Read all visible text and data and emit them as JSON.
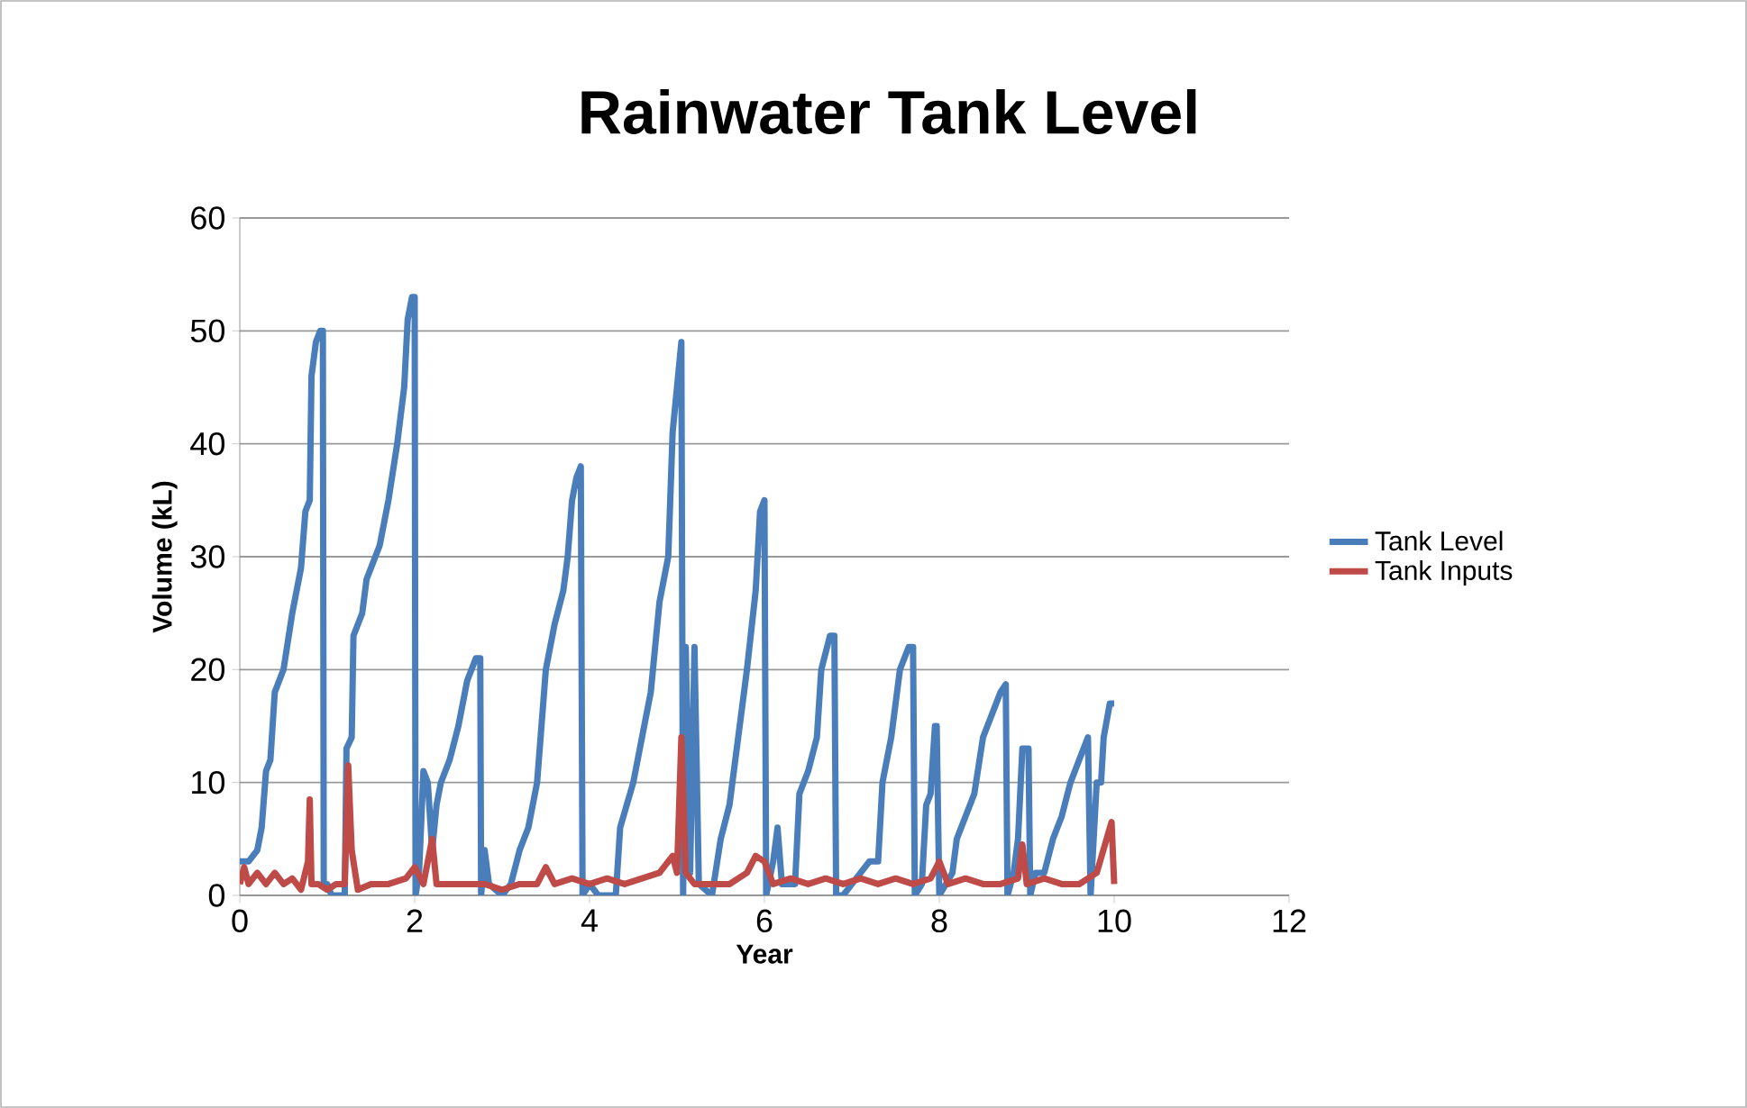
{
  "chart_data": {
    "type": "line",
    "title": "Rainwater Tank Level",
    "xlabel": "Year",
    "ylabel": "Volume (kL)",
    "xlim": [
      0,
      12
    ],
    "xticks": [
      0,
      2,
      4,
      6,
      8,
      10,
      12
    ],
    "ylim": [
      0,
      60
    ],
    "yticks": [
      0,
      10,
      20,
      30,
      40,
      50,
      60
    ],
    "grid": "y",
    "legend": "right",
    "marker": "none",
    "line_style": "solid",
    "series": [
      {
        "name": "Tank Level",
        "color": "#4a7ebb",
        "x": [
          0,
          0.1,
          0.2,
          0.25,
          0.3,
          0.35,
          0.4,
          0.5,
          0.6,
          0.7,
          0.75,
          0.8,
          0.82,
          0.87,
          0.92,
          0.95,
          0.96,
          1.0,
          1.05,
          1.2,
          1.22,
          1.28,
          1.3,
          1.4,
          1.45,
          1.6,
          1.7,
          1.8,
          1.88,
          1.92,
          1.97,
          2.0,
          2.01,
          2.05,
          2.1,
          2.15,
          2.2,
          2.25,
          2.3,
          2.4,
          2.5,
          2.6,
          2.7,
          2.75,
          2.76,
          2.8,
          2.85,
          3.0,
          3.1,
          3.2,
          3.3,
          3.4,
          3.5,
          3.6,
          3.7,
          3.75,
          3.8,
          3.85,
          3.9,
          3.92,
          4.0,
          4.1,
          4.3,
          4.35,
          4.5,
          4.6,
          4.7,
          4.8,
          4.9,
          4.95,
          5.0,
          5.05,
          5.07,
          5.1,
          5.15,
          5.2,
          5.25,
          5.4,
          5.5,
          5.6,
          5.7,
          5.8,
          5.9,
          5.95,
          6.0,
          6.02,
          6.1,
          6.15,
          6.2,
          6.35,
          6.4,
          6.5,
          6.6,
          6.65,
          6.75,
          6.8,
          6.82,
          6.9,
          7.0,
          7.2,
          7.3,
          7.35,
          7.45,
          7.55,
          7.65,
          7.7,
          7.72,
          7.8,
          7.85,
          7.9,
          7.95,
          7.97,
          8.0,
          8.15,
          8.2,
          8.3,
          8.4,
          8.5,
          8.6,
          8.7,
          8.76,
          8.78,
          8.85,
          8.9,
          8.95,
          8.98,
          9.02,
          9.04,
          9.1,
          9.2,
          9.3,
          9.4,
          9.5,
          9.6,
          9.7,
          9.73,
          9.8,
          9.85,
          9.88,
          9.95,
          10.0
        ],
        "values": [
          3,
          3,
          4,
          6,
          11,
          12,
          18,
          20,
          25,
          29,
          34,
          35,
          46,
          49,
          50,
          50,
          1,
          1,
          0,
          0,
          13,
          14,
          23,
          25,
          28,
          31,
          35,
          40,
          45,
          51,
          53,
          53,
          0,
          2,
          11,
          10,
          4,
          8,
          10,
          12,
          15,
          19,
          21,
          21,
          0,
          4,
          1,
          0,
          1,
          4,
          6,
          10,
          20,
          24,
          27,
          30,
          35,
          37,
          38,
          0,
          1,
          0,
          0,
          6,
          10,
          14,
          18,
          26,
          30,
          41,
          45,
          49,
          0,
          22,
          2,
          22,
          1,
          0,
          5,
          8,
          14,
          20,
          27,
          34,
          35,
          0,
          3,
          6,
          1,
          1,
          9,
          11,
          14,
          20,
          23,
          23,
          0,
          0,
          1,
          3,
          3,
          10,
          14,
          20,
          22,
          22,
          0,
          1,
          8,
          9,
          15,
          15,
          0,
          2,
          5,
          7,
          9,
          14,
          16,
          18,
          18.7,
          0,
          2,
          5,
          13,
          13,
          13,
          0,
          2,
          2,
          5,
          7,
          10,
          12,
          14,
          0,
          10,
          10,
          14,
          17,
          17
        ]
      },
      {
        "name": "Tank Inputs",
        "color": "#be4b48",
        "x": [
          0,
          0.05,
          0.1,
          0.2,
          0.3,
          0.4,
          0.5,
          0.6,
          0.7,
          0.78,
          0.8,
          0.82,
          0.9,
          1.0,
          1.1,
          1.2,
          1.24,
          1.28,
          1.35,
          1.5,
          1.7,
          1.9,
          2.0,
          2.1,
          2.2,
          2.25,
          2.4,
          2.6,
          2.8,
          3.0,
          3.2,
          3.4,
          3.5,
          3.6,
          3.8,
          4.0,
          4.2,
          4.4,
          4.6,
          4.8,
          4.95,
          5.0,
          5.05,
          5.1,
          5.2,
          5.4,
          5.6,
          5.8,
          5.9,
          6.0,
          6.1,
          6.3,
          6.5,
          6.7,
          6.9,
          7.1,
          7.3,
          7.5,
          7.7,
          7.9,
          8.0,
          8.1,
          8.3,
          8.5,
          8.7,
          8.9,
          8.95,
          9.0,
          9.2,
          9.4,
          9.6,
          9.8,
          9.97,
          10.0
        ],
        "values": [
          1,
          2.5,
          1,
          2,
          1,
          2,
          1,
          1.5,
          0.5,
          3,
          8.5,
          1,
          1,
          0.5,
          1,
          1,
          11.5,
          4,
          0.5,
          1,
          1,
          1.5,
          2.5,
          1,
          5,
          1,
          1,
          1,
          1,
          0.5,
          1,
          1,
          2.5,
          1,
          1.5,
          1,
          1.5,
          1,
          1.5,
          2,
          3.5,
          2,
          14,
          2,
          1,
          1,
          1,
          2,
          3.5,
          3,
          1,
          1.5,
          1,
          1.5,
          1,
          1.5,
          1,
          1.5,
          1,
          1.5,
          3,
          1,
          1.5,
          1,
          1,
          1.5,
          4.5,
          1,
          1.5,
          1,
          1,
          2,
          6.5,
          1
        ]
      }
    ]
  }
}
